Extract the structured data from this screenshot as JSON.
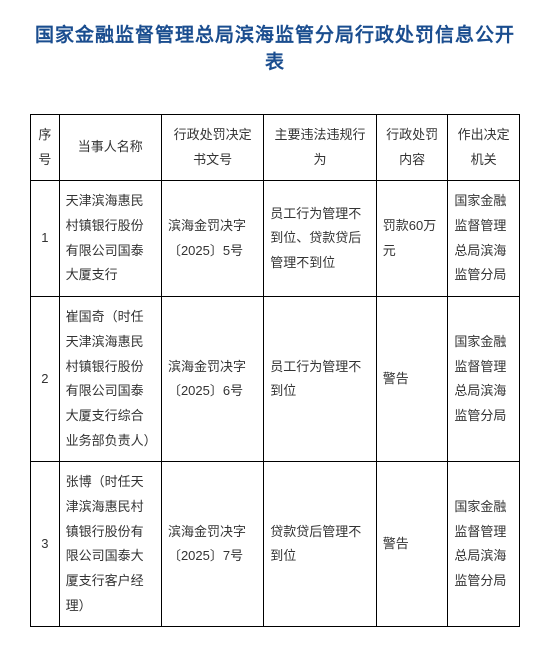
{
  "title": "国家金融监督管理总局滨海监管分局行政处罚信息公开表",
  "columns": {
    "seq": "序号",
    "name": "当事人名称",
    "docno": "行政处罚决定书文号",
    "violation": "主要违法违规行为",
    "penalty": "行政处罚内容",
    "authority": "作出决定机关"
  },
  "rows": [
    {
      "seq": "1",
      "name": "天津滨海惠民村镇银行股份有限公司国泰大厦支行",
      "docno": "滨海金罚决字〔2025〕5号",
      "violation": "员工行为管理不到位、贷款贷后管理不到位",
      "penalty": "罚款60万元",
      "authority": "国家金融监督管理总局滨海监管分局"
    },
    {
      "seq": "2",
      "name": "崔国奇（时任天津滨海惠民村镇银行股份有限公司国泰大厦支行综合业务部负责人）",
      "docno": "滨海金罚决字〔2025〕6号",
      "violation": "员工行为管理不到位",
      "penalty": "警告",
      "authority": "国家金融监督管理总局滨海监管分局"
    },
    {
      "seq": "3",
      "name": "张博（时任天津滨海惠民村镇银行股份有限公司国泰大厦支行客户经理）",
      "docno": "滨海金罚决字〔2025〕7号",
      "violation": "贷款贷后管理不到位",
      "penalty": "警告",
      "authority": "国家金融监督管理总局滨海监管分局"
    }
  ]
}
